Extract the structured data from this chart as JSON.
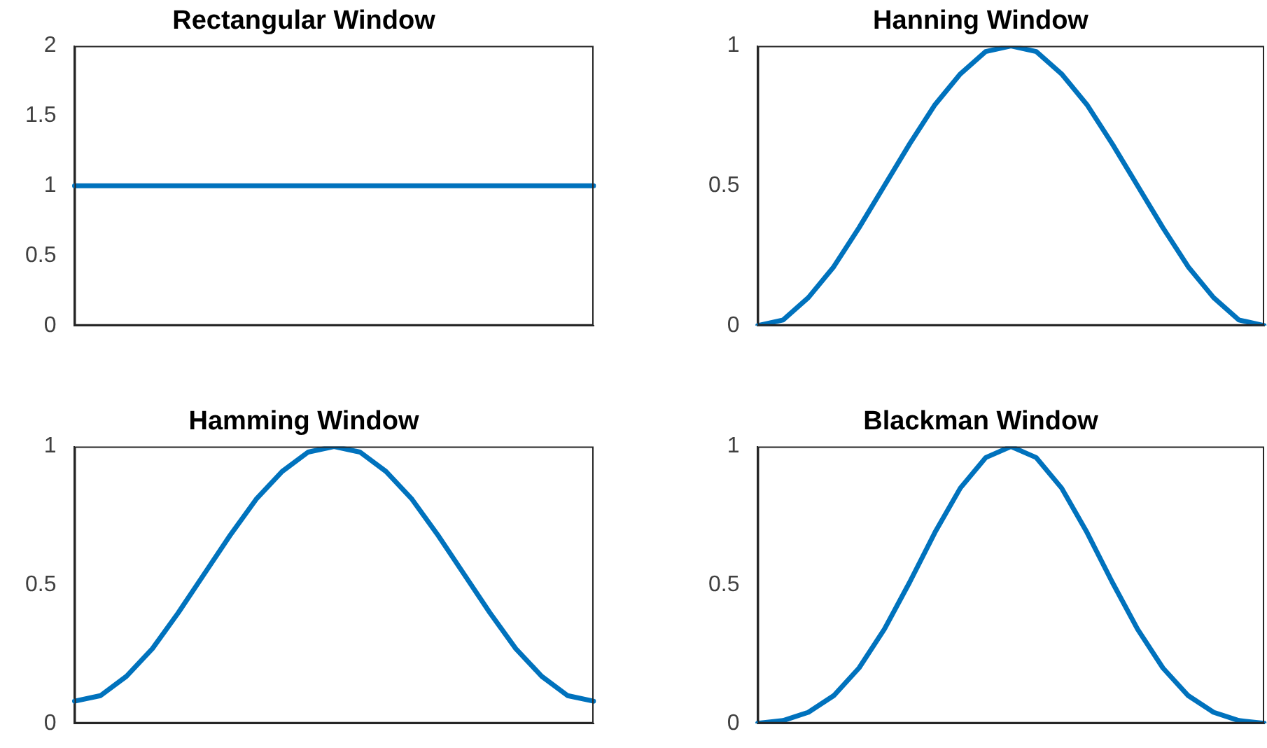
{
  "chart_data": [
    {
      "type": "line",
      "title": "Rectangular Window",
      "categories": [
        null,
        null,
        null,
        null,
        null,
        null,
        null,
        null,
        null,
        null,
        null,
        null,
        null,
        null,
        null,
        null,
        null,
        null,
        null,
        null,
        null
      ],
      "series": [
        {
          "color": "#0072bd",
          "values": [
            1,
            1,
            1,
            1,
            1,
            1,
            1,
            1,
            1,
            1,
            1,
            1,
            1,
            1,
            1,
            1,
            1,
            1,
            1,
            1,
            1
          ]
        }
      ],
      "ylim": [
        0,
        2
      ],
      "yticks": [
        0,
        0.5,
        1,
        1.5,
        2
      ],
      "tick_labels": "y"
    },
    {
      "type": "line",
      "title": "Hanning Window",
      "categories": [
        null,
        null,
        null,
        null,
        null,
        null,
        null,
        null,
        null,
        null,
        null,
        null,
        null,
        null,
        null,
        null,
        null,
        null,
        null,
        null,
        null
      ],
      "series": [
        {
          "color": "#0072bd",
          "values": [
            0,
            0.02,
            0.1,
            0.21,
            0.35,
            0.5,
            0.65,
            0.79,
            0.9,
            0.98,
            1,
            0.98,
            0.9,
            0.79,
            0.65,
            0.5,
            0.35,
            0.21,
            0.1,
            0.02,
            0
          ]
        }
      ],
      "ylim": [
        0,
        1
      ],
      "yticks": [
        0,
        0.5,
        1
      ],
      "tick_labels": "y"
    },
    {
      "type": "line",
      "title": "Hamming Window",
      "categories": [
        null,
        null,
        null,
        null,
        null,
        null,
        null,
        null,
        null,
        null,
        null,
        null,
        null,
        null,
        null,
        null,
        null,
        null,
        null,
        null,
        null
      ],
      "series": [
        {
          "color": "#0072bd",
          "values": [
            0.08,
            0.1,
            0.17,
            0.27,
            0.4,
            0.54,
            0.68,
            0.81,
            0.91,
            0.98,
            1,
            0.98,
            0.91,
            0.81,
            0.68,
            0.54,
            0.4,
            0.27,
            0.17,
            0.1,
            0.08
          ]
        }
      ],
      "ylim": [
        0,
        1
      ],
      "yticks": [
        0,
        0.5,
        1
      ],
      "tick_labels": "y"
    },
    {
      "type": "line",
      "title": "Blackman Window",
      "categories": [
        null,
        null,
        null,
        null,
        null,
        null,
        null,
        null,
        null,
        null,
        null,
        null,
        null,
        null,
        null,
        null,
        null,
        null,
        null,
        null,
        null
      ],
      "series": [
        {
          "color": "#0072bd",
          "values": [
            0,
            0.01,
            0.04,
            0.1,
            0.2,
            0.34,
            0.51,
            0.69,
            0.85,
            0.96,
            1,
            0.96,
            0.85,
            0.69,
            0.51,
            0.34,
            0.2,
            0.1,
            0.04,
            0.01,
            0
          ]
        }
      ],
      "ylim": [
        0,
        1
      ],
      "yticks": [
        0,
        0.5,
        1
      ],
      "tick_labels": "y"
    }
  ]
}
